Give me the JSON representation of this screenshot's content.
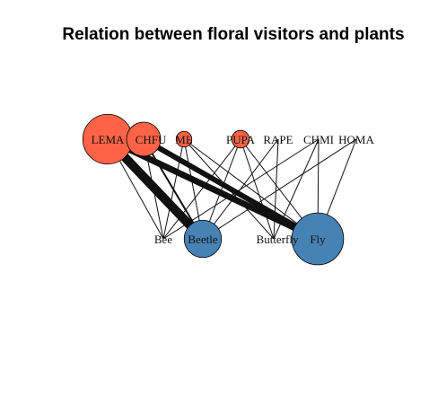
{
  "title": "Relation between floral visitors and plants",
  "colors": {
    "plant": "#FF6347",
    "visitor": "#4682B4",
    "edge": "#111111"
  },
  "plants": [
    {
      "id": "LEMA",
      "label": "LEMA",
      "size": 10
    },
    {
      "id": "CHFU",
      "label": "CHFU",
      "size": 4
    },
    {
      "id": "ME",
      "label": "ME",
      "size": 0.4
    },
    {
      "id": "PUPA",
      "label": "PUPA",
      "size": 0.6
    },
    {
      "id": "RAPE",
      "label": "RAPE",
      "size": 0.1
    },
    {
      "id": "CHMI",
      "label": "CHMI",
      "size": 0.1
    },
    {
      "id": "HOMA",
      "label": "HOMA",
      "size": 0.1
    }
  ],
  "visitors": [
    {
      "id": "Bee",
      "label": "Bee",
      "size": 0.1
    },
    {
      "id": "Beetle",
      "label": "Beetle",
      "size": 5
    },
    {
      "id": "Butterfly",
      "label": "Butterfly",
      "size": 0.1
    },
    {
      "id": "Fly",
      "label": "Fly",
      "size": 11
    }
  ],
  "links": [
    {
      "from": "LEMA",
      "to": "Bee",
      "weight": 1
    },
    {
      "from": "LEMA",
      "to": "Beetle",
      "weight": 10
    },
    {
      "from": "LEMA",
      "to": "Fly",
      "weight": 7
    },
    {
      "from": "CHFU",
      "to": "Bee",
      "weight": 1
    },
    {
      "from": "CHFU",
      "to": "Beetle",
      "weight": 2
    },
    {
      "from": "CHFU",
      "to": "Fly",
      "weight": 6
    },
    {
      "from": "ME",
      "to": "Bee",
      "weight": 1
    },
    {
      "from": "ME",
      "to": "Beetle",
      "weight": 1
    },
    {
      "from": "ME",
      "to": "Butterfly",
      "weight": 1
    },
    {
      "from": "ME",
      "to": "Fly",
      "weight": 1
    },
    {
      "from": "PUPA",
      "to": "Bee",
      "weight": 1
    },
    {
      "from": "PUPA",
      "to": "Beetle",
      "weight": 1
    },
    {
      "from": "PUPA",
      "to": "Butterfly",
      "weight": 1
    },
    {
      "from": "PUPA",
      "to": "Fly",
      "weight": 1
    },
    {
      "from": "RAPE",
      "to": "Beetle",
      "weight": 1
    },
    {
      "from": "RAPE",
      "to": "Butterfly",
      "weight": 1
    },
    {
      "from": "CHMI",
      "to": "Bee",
      "weight": 1
    },
    {
      "from": "CHMI",
      "to": "Butterfly",
      "weight": 1
    },
    {
      "from": "CHMI",
      "to": "Fly",
      "weight": 1
    },
    {
      "from": "HOMA",
      "to": "Beetle",
      "weight": 1
    },
    {
      "from": "HOMA",
      "to": "Fly",
      "weight": 1
    }
  ]
}
